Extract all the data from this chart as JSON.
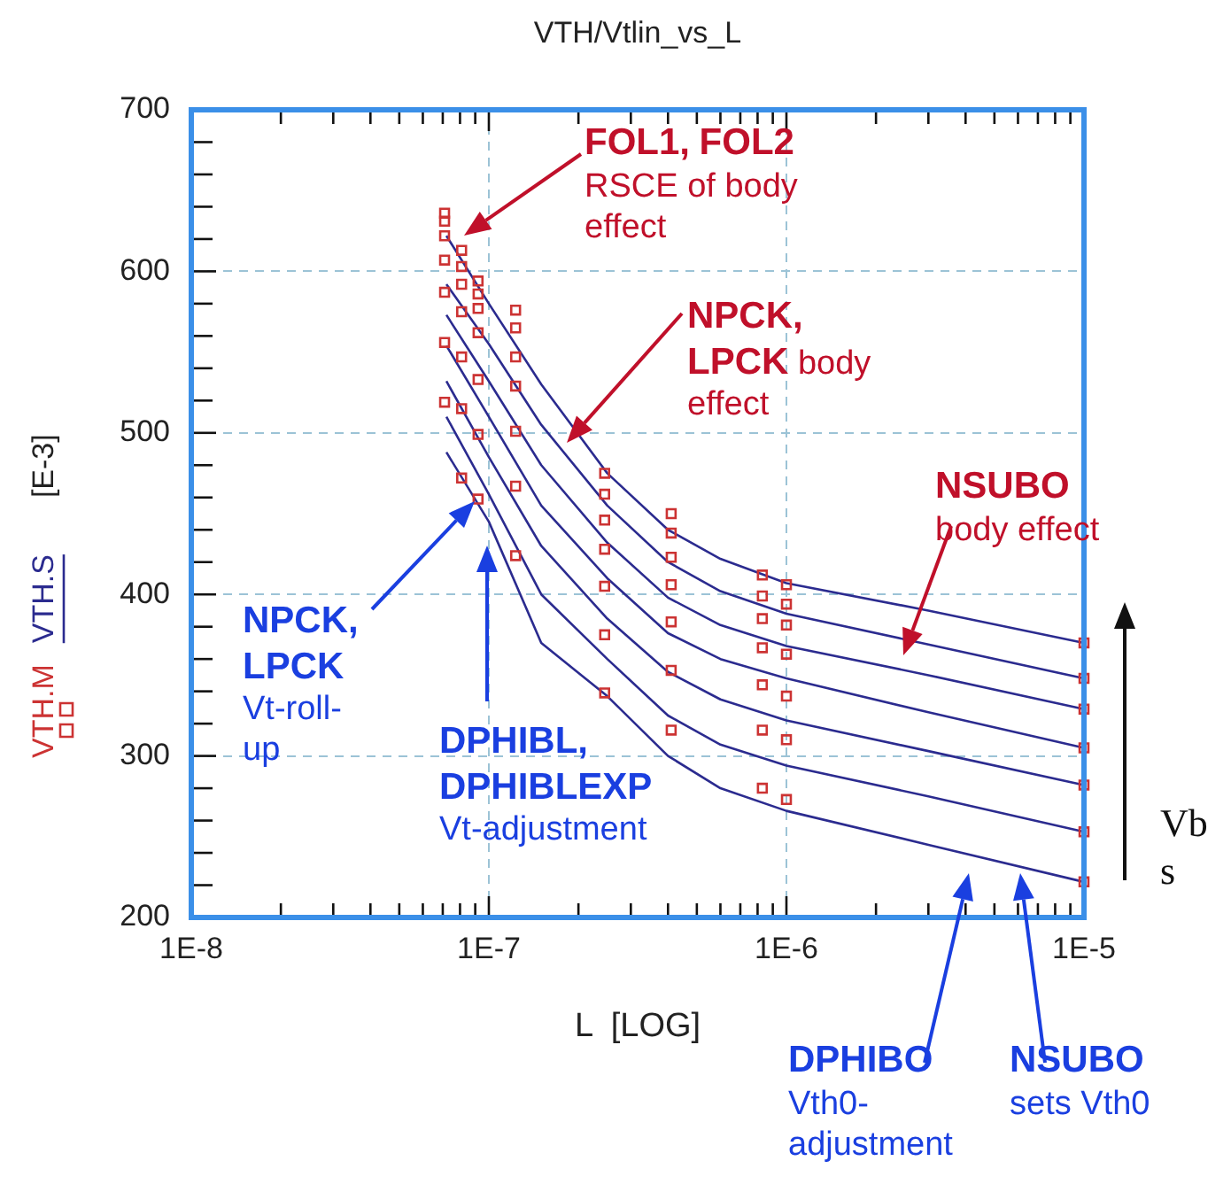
{
  "chart_data": {
    "type": "scatter",
    "title": "VTH/Vtlin_vs_L",
    "xlabel": "L  [LOG]",
    "ylabel": "[E-3]",
    "log": "x",
    "grid": true,
    "legend": "left",
    "xlim": [
      1e-08,
      1e-05
    ],
    "ylim": [
      200,
      700
    ],
    "xticks": [
      {
        "value": 1e-08,
        "label": "1E-8"
      },
      {
        "value": 2e-08,
        "label": null
      },
      {
        "value": 3e-08,
        "label": null
      },
      {
        "value": 4e-08,
        "label": null
      },
      {
        "value": 5e-08,
        "label": null
      },
      {
        "value": 6e-08,
        "label": null
      },
      {
        "value": 7e-08,
        "label": null
      },
      {
        "value": 8e-08,
        "label": null
      },
      {
        "value": 9e-08,
        "label": null
      },
      {
        "value": 1e-07,
        "label": "1E-7"
      },
      {
        "value": 2e-07,
        "label": null
      },
      {
        "value": 3e-07,
        "label": null
      },
      {
        "value": 4e-07,
        "label": null
      },
      {
        "value": 5e-07,
        "label": null
      },
      {
        "value": 6e-07,
        "label": null
      },
      {
        "value": 7e-07,
        "label": null
      },
      {
        "value": 8e-07,
        "label": null
      },
      {
        "value": 9e-07,
        "label": null
      },
      {
        "value": 1e-06,
        "label": "1E-6"
      },
      {
        "value": 2e-06,
        "label": null
      },
      {
        "value": 3e-06,
        "label": null
      },
      {
        "value": 4e-06,
        "label": null
      },
      {
        "value": 5e-06,
        "label": null
      },
      {
        "value": 6e-06,
        "label": null
      },
      {
        "value": 7e-06,
        "label": null
      },
      {
        "value": 8e-06,
        "label": null
      },
      {
        "value": 9e-06,
        "label": null
      },
      {
        "value": 1e-05,
        "label": "1E-5"
      }
    ],
    "yticks": [
      200,
      {
        "value": 220,
        "label": null
      },
      {
        "value": 240,
        "label": null
      },
      {
        "value": 260,
        "label": null
      },
      {
        "value": 280,
        "label": null
      },
      300,
      {
        "value": 320,
        "label": null
      },
      {
        "value": 340,
        "label": null
      },
      {
        "value": 360,
        "label": null
      },
      {
        "value": 380,
        "label": null
      },
      400,
      {
        "value": 420,
        "label": null
      },
      {
        "value": 440,
        "label": null
      },
      {
        "value": 460,
        "label": null
      },
      {
        "value": 480,
        "label": null
      },
      500,
      {
        "value": 520,
        "label": null
      },
      {
        "value": 540,
        "label": null
      },
      {
        "value": 560,
        "label": null
      },
      {
        "value": 580,
        "label": null
      },
      600,
      {
        "value": 620,
        "label": null
      },
      {
        "value": 640,
        "label": null
      },
      {
        "value": 660,
        "label": null
      },
      {
        "value": 680,
        "label": null
      },
      700
    ],
    "series": [
      {
        "type": "scatter",
        "name": "VTH.M",
        "color": "#cc3333",
        "marker": "square",
        "x": [
          7.1e-08,
          7.1e-08,
          7.1e-08,
          7.1e-08,
          7.1e-08,
          7.1e-08,
          7.1e-08,
          8.1e-08,
          8.1e-08,
          8.1e-08,
          8.1e-08,
          8.1e-08,
          8.1e-08,
          8.1e-08,
          9.2e-08,
          9.2e-08,
          9.2e-08,
          9.2e-08,
          9.2e-08,
          9.2e-08,
          9.2e-08,
          1.23e-07,
          1.23e-07,
          1.23e-07,
          1.23e-07,
          1.23e-07,
          1.23e-07,
          1.23e-07,
          2.45e-07,
          2.45e-07,
          2.45e-07,
          2.45e-07,
          2.45e-07,
          2.45e-07,
          2.45e-07,
          4.1e-07,
          4.1e-07,
          4.1e-07,
          4.1e-07,
          4.1e-07,
          4.1e-07,
          4.1e-07,
          8.3e-07,
          8.3e-07,
          8.3e-07,
          8.3e-07,
          8.3e-07,
          8.3e-07,
          8.3e-07,
          1e-06,
          1e-06,
          1e-06,
          1e-06,
          1e-06,
          1e-06,
          1e-06,
          1e-05,
          1e-05,
          1e-05,
          1e-05,
          1e-05,
          1e-05,
          1e-05
        ],
        "values": [
          636,
          631,
          622,
          607,
          587,
          556,
          519,
          613,
          603,
          592,
          575,
          547,
          515,
          472,
          594,
          586,
          577,
          562,
          533,
          499,
          459,
          576,
          565,
          547,
          529,
          501,
          467,
          424,
          475,
          462,
          446,
          428,
          405,
          375,
          339,
          450,
          438,
          423,
          406,
          383,
          353,
          316,
          412,
          399,
          385,
          367,
          344,
          316,
          280,
          406,
          394,
          381,
          363,
          337,
          310,
          273,
          370,
          348,
          329,
          305,
          282,
          253,
          222
        ]
      },
      {
        "type": "line",
        "name": "VTH.S",
        "color": "#2b2b8f",
        "marker": "none",
        "x": [
          7.2e-08,
          1e-07,
          1.5e-07,
          2.5e-07,
          4e-07,
          6e-07,
          1e-06,
          3e-06,
          1e-05
        ],
        "values": [
          622,
          580,
          530,
          475,
          440,
          422,
          407,
          390,
          370
        ]
      },
      {
        "type": "line",
        "color": "#2b2b8f",
        "marker": "none",
        "x": [
          7.2e-08,
          1e-07,
          1.5e-07,
          2.5e-07,
          4e-07,
          6e-07,
          1e-06,
          3e-06,
          1e-05
        ],
        "values": [
          592,
          555,
          505,
          455,
          420,
          402,
          388,
          369,
          348
        ]
      },
      {
        "type": "line",
        "color": "#2b2b8f",
        "marker": "none",
        "x": [
          7.2e-08,
          1e-07,
          1.5e-07,
          2.5e-07,
          4e-07,
          6e-07,
          1e-06,
          3e-06,
          1e-05
        ],
        "values": [
          573,
          532,
          480,
          432,
          398,
          381,
          368,
          350,
          329
        ]
      },
      {
        "type": "line",
        "color": "#2b2b8f",
        "marker": "none",
        "x": [
          7.2e-08,
          1e-07,
          1.5e-07,
          2.5e-07,
          4e-07,
          6e-07,
          1e-06,
          3e-06,
          1e-05
        ],
        "values": [
          554,
          510,
          455,
          410,
          376,
          360,
          348,
          327,
          305
        ]
      },
      {
        "type": "line",
        "color": "#2b2b8f",
        "marker": "none",
        "x": [
          7.2e-08,
          1e-07,
          1.5e-07,
          2.5e-07,
          4e-07,
          6e-07,
          1e-06,
          3e-06,
          1e-05
        ],
        "values": [
          532,
          485,
          430,
          385,
          352,
          335,
          322,
          303,
          282
        ]
      },
      {
        "type": "line",
        "color": "#2b2b8f",
        "marker": "none",
        "x": [
          7.2e-08,
          1e-07,
          1.5e-07,
          2.5e-07,
          4e-07,
          6e-07,
          1e-06,
          3e-06,
          1e-05
        ],
        "values": [
          510,
          462,
          400,
          360,
          325,
          307,
          294,
          275,
          253
        ]
      },
      {
        "type": "line",
        "color": "#2b2b8f",
        "marker": "none",
        "x": [
          7.2e-08,
          1e-07,
          1.5e-07,
          2.5e-07,
          4e-07,
          6e-07,
          1e-06,
          3e-06,
          1e-05
        ],
        "values": [
          488,
          445,
          370,
          337,
          300,
          280,
          266,
          245,
          222
        ]
      }
    ],
    "annotations": [
      "FOL1, FOL2 RSCE of body effect",
      "NPCK, LPCK body effect",
      "NSUBO body effect",
      "NPCK, LPCK Vt-roll-up",
      "DPHIBL, DPHIBLEXP Vt-adjustment",
      "DPHIBO Vth0-adjustment",
      "NSUBO sets Vth0",
      "Vbs"
    ]
  }
}
